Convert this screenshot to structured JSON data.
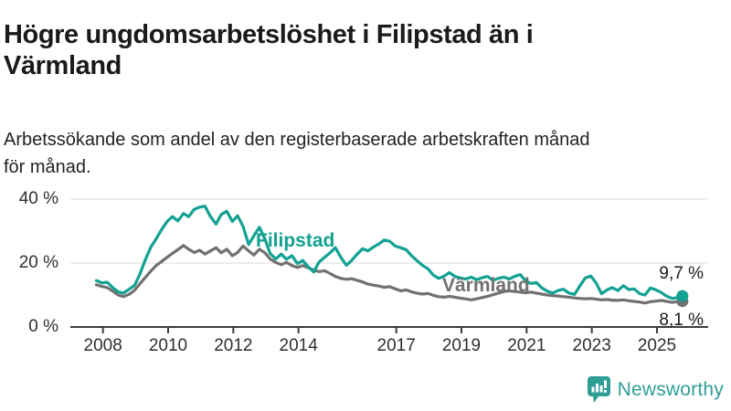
{
  "header": {
    "title": "Högre ungdomsarbetslöshet i Filipstad än i\nVärmland",
    "subtitle": "Arbetssökande som andel av den registerbaserade arbetskraften månad\nför månad."
  },
  "footer": {
    "brand": "Newsworthy",
    "brand_color": "#2f9e97",
    "logo_icon": "bar-chart-speech-bubble-icon"
  },
  "chart_data": {
    "type": "line",
    "title": "Högre ungdomsarbetslöshet i Filipstad än i Värmland",
    "subtitle": "Arbetssökande som andel av den registerbaserade arbetskraften månad för månad.",
    "unit": "%",
    "grid": "horizontal",
    "legend_position": "inline-labels",
    "x_axis": {
      "range": [
        2007,
        2026.57
      ],
      "ticks": [
        2008,
        2010,
        2012,
        2014,
        2017,
        2019,
        2021,
        2023,
        2025
      ],
      "tick_labels": [
        "2008",
        "2010",
        "2012",
        "2014",
        "2017",
        "2019",
        "2021",
        "2023",
        "2025"
      ]
    },
    "y_axis": {
      "range": [
        0,
        45
      ],
      "ticks": [
        0,
        20,
        40
      ],
      "tick_labels": [
        "0 %",
        "20 %",
        "40 %"
      ]
    },
    "series": [
      {
        "name": "Värmland",
        "color": "#717171",
        "end_label": "8,1 %",
        "latest_value": 8.1,
        "points": [
          [
            2007.8,
            13.2
          ],
          [
            2007.97,
            12.7
          ],
          [
            2008.13,
            12.3
          ],
          [
            2008.3,
            11.2
          ],
          [
            2008.47,
            10.0
          ],
          [
            2008.63,
            9.5
          ],
          [
            2008.8,
            10.2
          ],
          [
            2008.97,
            11.5
          ],
          [
            2009.13,
            13.5
          ],
          [
            2009.3,
            15.5
          ],
          [
            2009.47,
            17.5
          ],
          [
            2009.63,
            19.2
          ],
          [
            2009.8,
            20.5
          ],
          [
            2009.97,
            21.8
          ],
          [
            2010.13,
            23.0
          ],
          [
            2010.3,
            24.2
          ],
          [
            2010.47,
            25.5
          ],
          [
            2010.63,
            24.3
          ],
          [
            2010.8,
            23.3
          ],
          [
            2010.97,
            24.0
          ],
          [
            2011.13,
            22.8
          ],
          [
            2011.3,
            23.8
          ],
          [
            2011.47,
            24.8
          ],
          [
            2011.63,
            23.2
          ],
          [
            2011.8,
            24.3
          ],
          [
            2011.97,
            22.3
          ],
          [
            2012.13,
            23.3
          ],
          [
            2012.3,
            25.3
          ],
          [
            2012.47,
            23.8
          ],
          [
            2012.63,
            22.5
          ],
          [
            2012.8,
            24.3
          ],
          [
            2012.97,
            23.2
          ],
          [
            2013.13,
            21.3
          ],
          [
            2013.3,
            20.2
          ],
          [
            2013.47,
            19.5
          ],
          [
            2013.63,
            20.2
          ],
          [
            2013.8,
            19.2
          ],
          [
            2013.97,
            18.6
          ],
          [
            2014.13,
            19.2
          ],
          [
            2014.3,
            18.5
          ],
          [
            2014.47,
            17.8
          ],
          [
            2014.63,
            17.3
          ],
          [
            2014.8,
            17.6
          ],
          [
            2014.97,
            16.7
          ],
          [
            2015.13,
            15.8
          ],
          [
            2015.3,
            15.2
          ],
          [
            2015.47,
            14.9
          ],
          [
            2015.63,
            15.1
          ],
          [
            2015.8,
            14.6
          ],
          [
            2015.97,
            14.1
          ],
          [
            2016.13,
            13.4
          ],
          [
            2016.3,
            13.1
          ],
          [
            2016.47,
            12.8
          ],
          [
            2016.63,
            12.4
          ],
          [
            2016.8,
            12.6
          ],
          [
            2016.97,
            11.9
          ],
          [
            2017.13,
            11.3
          ],
          [
            2017.3,
            11.6
          ],
          [
            2017.47,
            11.0
          ],
          [
            2017.63,
            10.6
          ],
          [
            2017.8,
            10.3
          ],
          [
            2017.97,
            10.5
          ],
          [
            2018.13,
            9.9
          ],
          [
            2018.3,
            9.5
          ],
          [
            2018.47,
            9.3
          ],
          [
            2018.63,
            9.6
          ],
          [
            2018.8,
            9.3
          ],
          [
            2018.97,
            9.0
          ],
          [
            2019.13,
            8.8
          ],
          [
            2019.3,
            8.5
          ],
          [
            2019.47,
            8.8
          ],
          [
            2019.63,
            9.2
          ],
          [
            2019.8,
            9.6
          ],
          [
            2019.97,
            10.1
          ],
          [
            2020.13,
            10.6
          ],
          [
            2020.3,
            11.1
          ],
          [
            2020.47,
            11.3
          ],
          [
            2020.63,
            11.1
          ],
          [
            2020.8,
            10.9
          ],
          [
            2020.97,
            10.7
          ],
          [
            2021.13,
            10.9
          ],
          [
            2021.3,
            10.6
          ],
          [
            2021.47,
            10.3
          ],
          [
            2021.63,
            10.0
          ],
          [
            2021.8,
            9.8
          ],
          [
            2021.97,
            9.7
          ],
          [
            2022.13,
            9.5
          ],
          [
            2022.3,
            9.3
          ],
          [
            2022.47,
            9.1
          ],
          [
            2022.63,
            8.9
          ],
          [
            2022.8,
            8.8
          ],
          [
            2022.97,
            8.9
          ],
          [
            2023.13,
            8.7
          ],
          [
            2023.3,
            8.5
          ],
          [
            2023.47,
            8.6
          ],
          [
            2023.63,
            8.4
          ],
          [
            2023.8,
            8.3
          ],
          [
            2023.97,
            8.5
          ],
          [
            2024.13,
            8.2
          ],
          [
            2024.3,
            8.0
          ],
          [
            2024.47,
            7.8
          ],
          [
            2024.63,
            7.5
          ],
          [
            2024.8,
            7.9
          ],
          [
            2024.97,
            8.1
          ],
          [
            2025.13,
            8.3
          ],
          [
            2025.3,
            8.0
          ],
          [
            2025.47,
            7.7
          ],
          [
            2025.63,
            7.9
          ],
          [
            2025.78,
            8.1
          ]
        ]
      },
      {
        "name": "Filipstad",
        "color": "#12a192",
        "end_label": "9,7 %",
        "latest_value": 9.7,
        "points": [
          [
            2007.8,
            14.5
          ],
          [
            2007.97,
            13.8
          ],
          [
            2008.13,
            14.0
          ],
          [
            2008.3,
            12.3
          ],
          [
            2008.47,
            11.0
          ],
          [
            2008.63,
            10.6
          ],
          [
            2008.8,
            11.8
          ],
          [
            2008.97,
            13.0
          ],
          [
            2009.13,
            16.5
          ],
          [
            2009.3,
            21.0
          ],
          [
            2009.47,
            25.0
          ],
          [
            2009.63,
            27.5
          ],
          [
            2009.8,
            30.5
          ],
          [
            2009.97,
            33.0
          ],
          [
            2010.13,
            34.5
          ],
          [
            2010.3,
            33.2
          ],
          [
            2010.47,
            35.5
          ],
          [
            2010.63,
            34.5
          ],
          [
            2010.8,
            36.8
          ],
          [
            2010.97,
            37.5
          ],
          [
            2011.13,
            37.8
          ],
          [
            2011.3,
            34.5
          ],
          [
            2011.47,
            32.2
          ],
          [
            2011.63,
            35.2
          ],
          [
            2011.8,
            36.2
          ],
          [
            2011.97,
            33.0
          ],
          [
            2012.13,
            34.8
          ],
          [
            2012.3,
            31.5
          ],
          [
            2012.47,
            25.8
          ],
          [
            2012.63,
            28.5
          ],
          [
            2012.8,
            31.2
          ],
          [
            2012.97,
            27.5
          ],
          [
            2013.13,
            23.0
          ],
          [
            2013.3,
            21.3
          ],
          [
            2013.47,
            22.8
          ],
          [
            2013.63,
            21.2
          ],
          [
            2013.8,
            22.3
          ],
          [
            2013.97,
            19.8
          ],
          [
            2014.13,
            20.8
          ],
          [
            2014.3,
            18.8
          ],
          [
            2014.47,
            17.2
          ],
          [
            2014.63,
            20.3
          ],
          [
            2014.8,
            21.8
          ],
          [
            2014.97,
            23.2
          ],
          [
            2015.13,
            24.8
          ],
          [
            2015.3,
            21.8
          ],
          [
            2015.47,
            19.3
          ],
          [
            2015.63,
            20.8
          ],
          [
            2015.8,
            22.8
          ],
          [
            2015.97,
            24.5
          ],
          [
            2016.13,
            23.8
          ],
          [
            2016.3,
            25.0
          ],
          [
            2016.47,
            26.0
          ],
          [
            2016.63,
            27.2
          ],
          [
            2016.8,
            26.8
          ],
          [
            2016.97,
            25.3
          ],
          [
            2017.13,
            24.8
          ],
          [
            2017.3,
            24.2
          ],
          [
            2017.47,
            22.3
          ],
          [
            2017.63,
            20.8
          ],
          [
            2017.8,
            19.3
          ],
          [
            2017.97,
            18.2
          ],
          [
            2018.13,
            16.3
          ],
          [
            2018.3,
            15.2
          ],
          [
            2018.47,
            15.9
          ],
          [
            2018.63,
            17.0
          ],
          [
            2018.8,
            15.8
          ],
          [
            2018.97,
            15.3
          ],
          [
            2019.13,
            15.0
          ],
          [
            2019.3,
            15.6
          ],
          [
            2019.47,
            14.8
          ],
          [
            2019.63,
            15.4
          ],
          [
            2019.8,
            15.8
          ],
          [
            2019.97,
            14.6
          ],
          [
            2020.13,
            15.2
          ],
          [
            2020.3,
            15.6
          ],
          [
            2020.47,
            15.0
          ],
          [
            2020.63,
            15.8
          ],
          [
            2020.8,
            16.4
          ],
          [
            2020.97,
            14.4
          ],
          [
            2021.13,
            13.6
          ],
          [
            2021.3,
            13.9
          ],
          [
            2021.47,
            12.2
          ],
          [
            2021.63,
            11.2
          ],
          [
            2021.8,
            10.6
          ],
          [
            2021.97,
            11.4
          ],
          [
            2022.13,
            11.8
          ],
          [
            2022.3,
            10.6
          ],
          [
            2022.47,
            10.2
          ],
          [
            2022.63,
            12.8
          ],
          [
            2022.8,
            15.3
          ],
          [
            2022.97,
            15.9
          ],
          [
            2023.13,
            13.8
          ],
          [
            2023.3,
            10.4
          ],
          [
            2023.47,
            11.6
          ],
          [
            2023.63,
            12.3
          ],
          [
            2023.8,
            11.4
          ],
          [
            2023.97,
            12.9
          ],
          [
            2024.13,
            11.7
          ],
          [
            2024.3,
            11.9
          ],
          [
            2024.47,
            10.4
          ],
          [
            2024.63,
            10.0
          ],
          [
            2024.8,
            12.2
          ],
          [
            2024.97,
            11.6
          ],
          [
            2025.13,
            10.8
          ],
          [
            2025.3,
            9.6
          ],
          [
            2025.47,
            8.9
          ],
          [
            2025.63,
            9.2
          ],
          [
            2025.78,
            9.7
          ]
        ]
      }
    ]
  }
}
